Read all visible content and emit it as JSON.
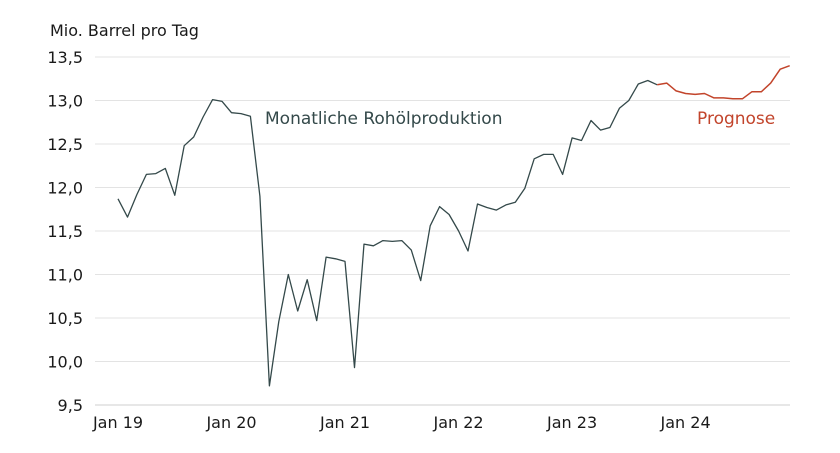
{
  "chart_data": {
    "type": "line",
    "ylabel": "Mio. Barrel pro Tag",
    "ylim": [
      9.5,
      13.5
    ],
    "y_ticks": [
      9.5,
      10.0,
      10.5,
      11.0,
      11.5,
      12.0,
      12.5,
      13.0,
      13.5
    ],
    "y_tick_labels": [
      "9,5",
      "10,0",
      "10,5",
      "11,0",
      "11,5",
      "12,0",
      "12,5",
      "13,0",
      "13,5"
    ],
    "x_ticks": [
      "2019-01",
      "2020-01",
      "2021-01",
      "2022-01",
      "2023-01",
      "2024-01"
    ],
    "x_tick_labels": [
      "Jan 19",
      "Jan 20",
      "Jan 21",
      "Jan 22",
      "Jan 23",
      "Jan 24"
    ],
    "grid": true,
    "series": [
      {
        "name": "Monatliche Rohölproduktion",
        "color": "#34494a",
        "x": [
          "2019-01",
          "2019-02",
          "2019-03",
          "2019-04",
          "2019-05",
          "2019-06",
          "2019-07",
          "2019-08",
          "2019-09",
          "2019-10",
          "2019-11",
          "2019-12",
          "2020-01",
          "2020-02",
          "2020-03",
          "2020-04",
          "2020-05",
          "2020-06",
          "2020-07",
          "2020-08",
          "2020-09",
          "2020-10",
          "2020-11",
          "2020-12",
          "2021-01",
          "2021-02",
          "2021-03",
          "2021-04",
          "2021-05",
          "2021-06",
          "2021-07",
          "2021-08",
          "2021-09",
          "2021-10",
          "2021-11",
          "2021-12",
          "2022-01",
          "2022-02",
          "2022-03",
          "2022-04",
          "2022-05",
          "2022-06",
          "2022-07",
          "2022-08",
          "2022-09",
          "2022-10",
          "2022-11",
          "2022-12",
          "2023-01",
          "2023-02",
          "2023-03",
          "2023-04",
          "2023-05",
          "2023-06",
          "2023-07",
          "2023-08",
          "2023-09",
          "2023-10"
        ],
        "values": [
          11.87,
          11.66,
          11.92,
          12.15,
          12.16,
          12.22,
          11.91,
          12.48,
          12.58,
          12.81,
          13.01,
          12.99,
          12.86,
          12.85,
          12.82,
          11.9,
          9.72,
          10.46,
          11.0,
          10.58,
          10.94,
          10.47,
          11.2,
          11.18,
          11.15,
          9.93,
          11.35,
          11.33,
          11.39,
          11.38,
          11.39,
          11.28,
          10.93,
          11.56,
          11.78,
          11.69,
          11.5,
          11.27,
          11.81,
          11.77,
          11.74,
          11.8,
          11.83,
          11.99,
          12.33,
          12.38,
          12.38,
          12.15,
          12.57,
          12.54,
          12.77,
          12.66,
          12.69,
          12.91,
          13.0,
          13.19,
          13.23,
          13.18
        ]
      },
      {
        "name": "Prognose",
        "color": "#c2442b",
        "x": [
          "2023-10",
          "2023-11",
          "2023-12",
          "2024-01",
          "2024-02",
          "2024-03",
          "2024-04",
          "2024-05",
          "2024-06",
          "2024-07",
          "2024-08",
          "2024-09",
          "2024-10",
          "2024-11",
          "2024-12"
        ],
        "values": [
          13.18,
          13.2,
          13.11,
          13.08,
          13.07,
          13.08,
          13.03,
          13.03,
          13.02,
          13.02,
          13.1,
          13.1,
          13.2,
          13.36,
          13.4
        ]
      }
    ]
  }
}
